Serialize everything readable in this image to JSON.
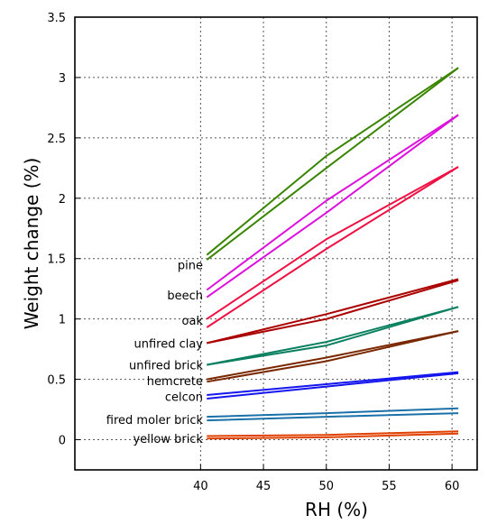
{
  "chart_data": {
    "type": "line",
    "xlabel": "RH (%)",
    "ylabel": "Weight change (%)",
    "xlim": [
      30,
      62
    ],
    "ylim": [
      -0.25,
      3.5
    ],
    "xticks": [
      "40",
      "45",
      "50",
      "55",
      "60"
    ],
    "yticks": [
      "0",
      "0.5",
      "1",
      "1.5",
      "2",
      "2.5",
      "3",
      "3.5"
    ],
    "grid": true,
    "series": [
      {
        "name": "pine",
        "color": "#3a8500",
        "x": [
          40.5,
          50,
          60.5
        ],
        "upper": [
          1.53,
          2.35,
          3.08
        ],
        "lower": [
          1.49,
          2.25,
          3.08
        ]
      },
      {
        "name": "beech",
        "color": "#dd11dd",
        "x": [
          40.5,
          50,
          60.5
        ],
        "upper": [
          1.24,
          1.98,
          2.69
        ],
        "lower": [
          1.18,
          1.88,
          2.69
        ]
      },
      {
        "name": "oak",
        "color": "#ee1144",
        "x": [
          40.5,
          50,
          60.5
        ],
        "upper": [
          1.0,
          1.66,
          2.26
        ],
        "lower": [
          0.93,
          1.58,
          2.26
        ]
      },
      {
        "name": "unfired clay",
        "color": "#aa0000",
        "x": [
          40.5,
          50,
          60.5
        ],
        "upper": [
          0.8,
          1.04,
          1.33
        ],
        "lower": [
          0.8,
          1.0,
          1.32
        ]
      },
      {
        "name": "unfired brick",
        "color": "#0a8060",
        "x": [
          40.5,
          50,
          60.5
        ],
        "upper": [
          0.62,
          0.81,
          1.1
        ],
        "lower": [
          0.62,
          0.78,
          1.1
        ]
      },
      {
        "name": "hemcrete",
        "color": "#7a2800",
        "x": [
          40.5,
          50,
          60.5
        ],
        "upper": [
          0.5,
          0.68,
          0.9
        ],
        "lower": [
          0.48,
          0.65,
          0.9
        ]
      },
      {
        "name": "celcon",
        "color": "#1515ee",
        "x": [
          40.5,
          50,
          60.5
        ],
        "upper": [
          0.37,
          0.46,
          0.56
        ],
        "lower": [
          0.34,
          0.44,
          0.55
        ]
      },
      {
        "name": "fired moler brick",
        "color": "#1a70a8",
        "x": [
          40.5,
          50,
          60.5
        ],
        "upper": [
          0.19,
          0.22,
          0.26
        ],
        "lower": [
          0.16,
          0.19,
          0.22
        ]
      },
      {
        "name": "yellow brick",
        "color": "#e04000",
        "x": [
          40.5,
          50,
          60.5
        ],
        "upper": [
          0.03,
          0.04,
          0.07
        ],
        "lower": [
          0.01,
          0.02,
          0.05
        ]
      }
    ],
    "labels": [
      {
        "text": "pine",
        "y": 1.45
      },
      {
        "text": "beech",
        "y": 1.2
      },
      {
        "text": "oak",
        "y": 0.99
      },
      {
        "text": "unfired clay",
        "y": 0.8
      },
      {
        "text": "unfired brick",
        "y": 0.62
      },
      {
        "text": "hemcrete",
        "y": 0.49
      },
      {
        "text": "celcon",
        "y": 0.36
      },
      {
        "text": "fired moler brick",
        "y": 0.17
      },
      {
        "text": "yellow brick",
        "y": 0.01
      }
    ]
  }
}
